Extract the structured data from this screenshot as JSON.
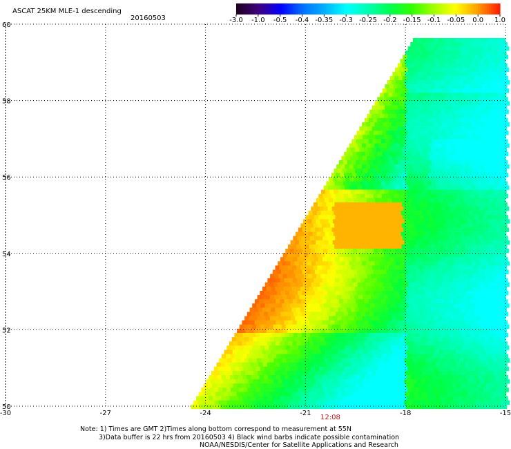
{
  "header": {
    "title": "ASCAT 25KM MLE-1 descending",
    "date": "20160503"
  },
  "colorbar": {
    "labels": [
      "-3.0",
      "-1.0",
      "-0.5",
      "-0.4",
      "-0.35",
      "-0.3",
      "-0.25",
      "-0.2",
      "-0.15",
      "-0.1",
      "-0.05",
      "0.0",
      "1.0"
    ],
    "colors": [
      "#200020",
      "#400080",
      "#0000ff",
      "#0070ff",
      "#00b0ff",
      "#00ffff",
      "#00ffb0",
      "#00ff50",
      "#30ff00",
      "#a0ff00",
      "#ffff00",
      "#ffa000",
      "#ff2000"
    ]
  },
  "map": {
    "lon_range": [
      -30,
      -15
    ],
    "lat_range": [
      50,
      60
    ],
    "lon_ticks": [
      "-30",
      "-27",
      "-24",
      "-21",
      "-18",
      "-15"
    ],
    "lat_ticks": [
      "50",
      "52",
      "54",
      "56",
      "58",
      "60"
    ],
    "time_label": "12:08",
    "time_label_lon": -21
  },
  "notes": {
    "line1": "Note: 1) Times are GMT 2)Times along bottom correspond to measurement at 55N",
    "line2": "3)Data buffer is 22 hrs from 20160503 4) Black wind barbs indicate possible contamination",
    "line3": "NOAA/NESDIS/Center for Satellite Applications and Research"
  }
}
